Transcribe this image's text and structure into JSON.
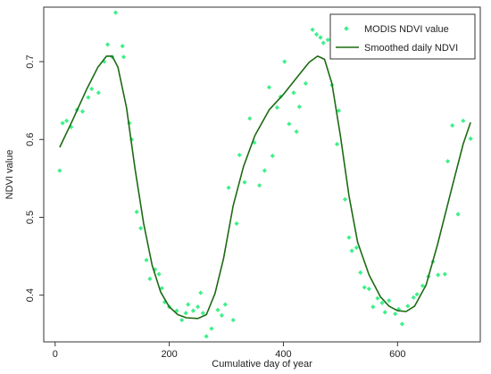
{
  "chart_data": {
    "type": "scatter",
    "title": "",
    "xlabel": "Cumulative day of year",
    "ylabel": "NDVI value",
    "xlim": [
      -20,
      745
    ],
    "ylim": [
      0.34,
      0.77
    ],
    "x_ticks": [
      0,
      200,
      400,
      600
    ],
    "y_ticks": [
      0.4,
      0.5,
      0.6,
      0.7
    ],
    "grid": false,
    "legend_position": "top-right",
    "series": [
      {
        "name": "MODIS NDVI value",
        "kind": "points",
        "color": "#3ef08a",
        "points": [
          [
            8,
            0.56
          ],
          [
            13,
            0.621
          ],
          [
            20,
            0.624
          ],
          [
            28,
            0.616
          ],
          [
            38,
            0.638
          ],
          [
            48,
            0.636
          ],
          [
            58,
            0.654
          ],
          [
            64,
            0.665
          ],
          [
            76,
            0.66
          ],
          [
            86,
            0.7
          ],
          [
            92,
            0.722
          ],
          [
            100,
            0.706
          ],
          [
            106,
            0.763
          ],
          [
            118,
            0.72
          ],
          [
            120,
            0.706
          ],
          [
            130,
            0.621
          ],
          [
            134,
            0.6
          ],
          [
            143,
            0.507
          ],
          [
            150,
            0.486
          ],
          [
            160,
            0.445
          ],
          [
            166,
            0.421
          ],
          [
            175,
            0.433
          ],
          [
            182,
            0.427
          ],
          [
            187,
            0.409
          ],
          [
            192,
            0.391
          ],
          [
            200,
            0.385
          ],
          [
            213,
            0.38
          ],
          [
            222,
            0.368
          ],
          [
            229,
            0.377
          ],
          [
            233,
            0.388
          ],
          [
            242,
            0.38
          ],
          [
            250,
            0.385
          ],
          [
            255,
            0.403
          ],
          [
            259,
            0.377
          ],
          [
            265,
            0.347
          ],
          [
            274,
            0.357
          ],
          [
            285,
            0.381
          ],
          [
            292,
            0.374
          ],
          [
            298,
            0.388
          ],
          [
            304,
            0.538
          ],
          [
            312,
            0.368
          ],
          [
            318,
            0.492
          ],
          [
            323,
            0.58
          ],
          [
            332,
            0.545
          ],
          [
            341,
            0.627
          ],
          [
            349,
            0.596
          ],
          [
            358,
            0.541
          ],
          [
            367,
            0.56
          ],
          [
            375,
            0.667
          ],
          [
            381,
            0.579
          ],
          [
            389,
            0.641
          ],
          [
            395,
            0.655
          ],
          [
            402,
            0.7
          ],
          [
            410,
            0.62
          ],
          [
            418,
            0.66
          ],
          [
            423,
            0.61
          ],
          [
            428,
            0.642
          ],
          [
            439,
            0.672
          ],
          [
            451,
            0.741
          ],
          [
            458,
            0.735
          ],
          [
            465,
            0.731
          ],
          [
            470,
            0.724
          ],
          [
            478,
            0.728
          ],
          [
            485,
            0.67
          ],
          [
            494,
            0.594
          ],
          [
            497,
            0.637
          ],
          [
            508,
            0.523
          ],
          [
            515,
            0.474
          ],
          [
            520,
            0.457
          ],
          [
            528,
            0.461
          ],
          [
            535,
            0.429
          ],
          [
            542,
            0.41
          ],
          [
            550,
            0.408
          ],
          [
            557,
            0.385
          ],
          [
            565,
            0.396
          ],
          [
            573,
            0.39
          ],
          [
            578,
            0.378
          ],
          [
            585,
            0.393
          ],
          [
            596,
            0.376
          ],
          [
            602,
            0.382
          ],
          [
            608,
            0.363
          ],
          [
            618,
            0.386
          ],
          [
            628,
            0.397
          ],
          [
            634,
            0.401
          ],
          [
            644,
            0.412
          ],
          [
            654,
            0.424
          ],
          [
            662,
            0.443
          ],
          [
            671,
            0.426
          ],
          [
            683,
            0.427
          ],
          [
            688,
            0.572
          ],
          [
            696,
            0.618
          ],
          [
            706,
            0.504
          ],
          [
            715,
            0.624
          ],
          [
            728,
            0.601
          ]
        ]
      },
      {
        "name": "Smoothed daily NDVI",
        "kind": "line",
        "color": "#1c6b12",
        "points": [
          [
            8,
            0.59
          ],
          [
            30,
            0.624
          ],
          [
            55,
            0.664
          ],
          [
            75,
            0.693
          ],
          [
            90,
            0.707
          ],
          [
            100,
            0.707
          ],
          [
            110,
            0.693
          ],
          [
            125,
            0.641
          ],
          [
            140,
            0.562
          ],
          [
            155,
            0.492
          ],
          [
            170,
            0.438
          ],
          [
            185,
            0.404
          ],
          [
            200,
            0.385
          ],
          [
            215,
            0.375
          ],
          [
            230,
            0.371
          ],
          [
            250,
            0.37
          ],
          [
            265,
            0.375
          ],
          [
            280,
            0.402
          ],
          [
            295,
            0.447
          ],
          [
            312,
            0.515
          ],
          [
            330,
            0.565
          ],
          [
            350,
            0.605
          ],
          [
            375,
            0.638
          ],
          [
            400,
            0.658
          ],
          [
            425,
            0.681
          ],
          [
            445,
            0.699
          ],
          [
            460,
            0.707
          ],
          [
            472,
            0.703
          ],
          [
            485,
            0.672
          ],
          [
            500,
            0.604
          ],
          [
            515,
            0.527
          ],
          [
            530,
            0.468
          ],
          [
            550,
            0.426
          ],
          [
            570,
            0.398
          ],
          [
            585,
            0.386
          ],
          [
            600,
            0.38
          ],
          [
            615,
            0.379
          ],
          [
            630,
            0.386
          ],
          [
            650,
            0.413
          ],
          [
            670,
            0.465
          ],
          [
            695,
            0.537
          ],
          [
            715,
            0.594
          ],
          [
            728,
            0.622
          ]
        ]
      }
    ]
  }
}
